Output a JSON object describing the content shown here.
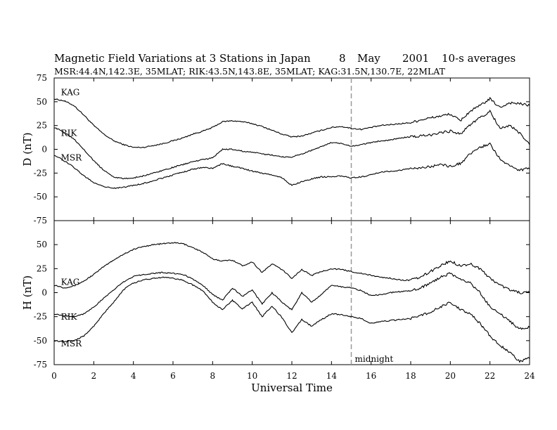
{
  "header": {
    "title": "Magnetic Field Variations at 3 Stations in Japan",
    "day": "8",
    "month": "May",
    "year": "2001",
    "averaging": "10-s averages",
    "stations_line": "MSR:44.4N,142.3E, 35MLAT;  RIK:43.5N,143.8E, 35MLAT;  KAG:31.5N,130.7E, 22MLAT"
  },
  "colors": {
    "trace": "#000000",
    "midnight_line": "#999999",
    "frame": "#000000"
  },
  "chart_data": {
    "type": "line",
    "xlabel": "Universal Time",
    "xlim": [
      0,
      24
    ],
    "xticks": [
      0,
      2,
      4,
      6,
      8,
      10,
      12,
      14,
      16,
      18,
      20,
      22,
      24
    ],
    "annotation": {
      "label": "midnight",
      "x": 15
    },
    "panels": [
      {
        "ylabel": "D (nT)",
        "ylim": [
          -75,
          75
        ],
        "yticks": [
          75,
          50,
          25,
          0,
          -25,
          -50,
          -75
        ],
        "labels": [
          {
            "text": "KAG",
            "x": 0.2,
            "y": 57
          },
          {
            "text": "RIK",
            "x": 0.2,
            "y": 14
          },
          {
            "text": "MSR",
            "x": 0.2,
            "y": -12
          }
        ],
        "series": [
          {
            "name": "KAG",
            "x": [
              0,
              0.5,
              1,
              1.5,
              2,
              2.5,
              3,
              3.5,
              4,
              4.5,
              5,
              5.5,
              6,
              6.5,
              7,
              7.5,
              8,
              8.5,
              9,
              9.5,
              10,
              10.5,
              11,
              11.5,
              12,
              12.5,
              13,
              13.5,
              14,
              14.5,
              15,
              15.5,
              16,
              16.5,
              17,
              17.5,
              18,
              18.5,
              19,
              19.5,
              20,
              20.5,
              21,
              21.5,
              22,
              22.5,
              23,
              23.5,
              24
            ],
            "y": [
              53,
              51,
              46,
              36,
              25,
              16,
              9,
              5,
              2,
              2,
              4,
              6,
              9,
              12,
              16,
              19,
              23,
              29,
              30,
              29,
              27,
              24,
              20,
              16,
              13,
              14,
              17,
              20,
              23,
              24,
              22,
              21,
              23,
              25,
              26,
              27,
              28,
              31,
              33,
              35,
              37,
              30,
              40,
              46,
              53,
              44,
              49,
              48,
              46
            ]
          },
          {
            "name": "RIK",
            "x": [
              0,
              0.5,
              1,
              1.5,
              2,
              2.5,
              3,
              3.5,
              4,
              4.5,
              5,
              5.5,
              6,
              6.5,
              7,
              7.5,
              8,
              8.5,
              9,
              9.5,
              10,
              10.5,
              11,
              11.5,
              12,
              12.5,
              13,
              13.5,
              14,
              14.5,
              15,
              15.5,
              16,
              16.5,
              17,
              17.5,
              18,
              18.5,
              19,
              19.5,
              20,
              20.5,
              21,
              21.5,
              22,
              22.5,
              23,
              23.5,
              24
            ],
            "y": [
              23,
              18,
              11,
              0,
              -12,
              -22,
              -29,
              -31,
              -30,
              -28,
              -25,
              -22,
              -19,
              -16,
              -13,
              -11,
              -9,
              0,
              0,
              -2,
              -3,
              -5,
              -6,
              -8,
              -8,
              -5,
              -1,
              3,
              7,
              6,
              3,
              5,
              7,
              9,
              10,
              12,
              13,
              14,
              15,
              18,
              19,
              16,
              26,
              33,
              40,
              22,
              25,
              17,
              5
            ]
          },
          {
            "name": "MSR",
            "x": [
              0,
              0.5,
              1,
              1.5,
              2,
              2.5,
              3,
              3.5,
              4,
              4.5,
              5,
              5.5,
              6,
              6.5,
              7,
              7.5,
              8,
              8.5,
              9,
              9.5,
              10,
              10.5,
              11,
              11.5,
              12,
              12.5,
              13,
              13.5,
              14,
              14.5,
              15,
              15.5,
              16,
              16.5,
              17,
              17.5,
              18,
              18.5,
              19,
              19.5,
              20,
              20.5,
              21,
              21.5,
              22,
              22.5,
              23,
              23.5,
              24
            ],
            "y": [
              -6,
              -12,
              -19,
              -28,
              -35,
              -39,
              -41,
              -40,
              -38,
              -36,
              -33,
              -30,
              -27,
              -24,
              -21,
              -19,
              -20,
              -15,
              -18,
              -20,
              -23,
              -25,
              -27,
              -30,
              -38,
              -34,
              -31,
              -29,
              -29,
              -28,
              -30,
              -29,
              -27,
              -24,
              -23,
              -22,
              -20,
              -20,
              -18,
              -16,
              -18,
              -15,
              -5,
              2,
              6,
              -10,
              -18,
              -22,
              -20
            ]
          }
        ]
      },
      {
        "ylabel": "H (nT)",
        "ylim": [
          -75,
          75
        ],
        "yticks": [
          50,
          25,
          0,
          -25,
          -50,
          -75
        ],
        "labels": [
          {
            "text": "KAG",
            "x": 0.2,
            "y": 8
          },
          {
            "text": "RIK",
            "x": 0.2,
            "y": -28
          },
          {
            "text": "MSR",
            "x": 0.2,
            "y": -56
          }
        ],
        "series": [
          {
            "name": "KAG",
            "x": [
              0,
              0.5,
              1,
              1.5,
              2,
              2.5,
              3,
              3.5,
              4,
              4.5,
              5,
              5.5,
              6,
              6.5,
              7,
              7.5,
              8,
              8.5,
              9,
              9.5,
              10,
              10.5,
              11,
              11.5,
              12,
              12.5,
              13,
              13.5,
              14,
              14.5,
              15,
              15.5,
              16,
              16.5,
              17,
              17.5,
              18,
              18.5,
              19,
              19.5,
              20,
              20.5,
              21,
              21.5,
              22,
              22.5,
              23,
              23.5,
              24
            ],
            "y": [
              8,
              5,
              7,
              12,
              19,
              27,
              34,
              40,
              45,
              48,
              50,
              51,
              52,
              51,
              47,
              42,
              35,
              33,
              34,
              28,
              32,
              21,
              30,
              24,
              15,
              24,
              18,
              22,
              25,
              24,
              22,
              20,
              18,
              16,
              15,
              13,
              13,
              16,
              22,
              28,
              33,
              28,
              30,
              25,
              15,
              8,
              3,
              0,
              0
            ]
          },
          {
            "name": "RIK",
            "x": [
              0,
              0.5,
              1,
              1.5,
              2,
              2.5,
              3,
              3.5,
              4,
              4.5,
              5,
              5.5,
              6,
              6.5,
              7,
              7.5,
              8,
              8.5,
              9,
              9.5,
              10,
              10.5,
              11,
              11.5,
              12,
              12.5,
              13,
              13.5,
              14,
              14.5,
              15,
              15.5,
              16,
              16.5,
              17,
              17.5,
              18,
              18.5,
              19,
              19.5,
              20,
              20.5,
              21,
              21.5,
              22,
              22.5,
              23,
              23.5,
              24
            ],
            "y": [
              -22,
              -24,
              -25,
              -22,
              -15,
              -6,
              3,
              11,
              17,
              19,
              20,
              21,
              20,
              19,
              14,
              8,
              -2,
              -8,
              5,
              -4,
              3,
              -12,
              0,
              -10,
              -18,
              0,
              -10,
              -2,
              8,
              6,
              5,
              2,
              -3,
              -2,
              0,
              1,
              2,
              5,
              10,
              16,
              20,
              14,
              10,
              0,
              -15,
              -22,
              -30,
              -38,
              -36
            ]
          },
          {
            "name": "MSR",
            "x": [
              0,
              0.5,
              1,
              1.5,
              2,
              2.5,
              3,
              3.5,
              4,
              4.5,
              5,
              5.5,
              6,
              6.5,
              7,
              7.5,
              8,
              8.5,
              9,
              9.5,
              10,
              10.5,
              11,
              11.5,
              12,
              12.5,
              13,
              13.5,
              14,
              14.5,
              15,
              15.5,
              16,
              16.5,
              17,
              17.5,
              18,
              18.5,
              19,
              19.5,
              20,
              20.5,
              21,
              21.5,
              22,
              22.5,
              23,
              23.5,
              24
            ],
            "y": [
              -50,
              -51,
              -50,
              -45,
              -35,
              -22,
              -10,
              3,
              10,
              13,
              15,
              16,
              15,
              13,
              8,
              2,
              -10,
              -18,
              -8,
              -17,
              -10,
              -25,
              -14,
              -26,
              -42,
              -28,
              -35,
              -28,
              -22,
              -23,
              -25,
              -27,
              -32,
              -30,
              -29,
              -28,
              -27,
              -24,
              -20,
              -15,
              -10,
              -17,
              -22,
              -32,
              -45,
              -55,
              -62,
              -72,
              -68
            ]
          }
        ]
      }
    ]
  }
}
